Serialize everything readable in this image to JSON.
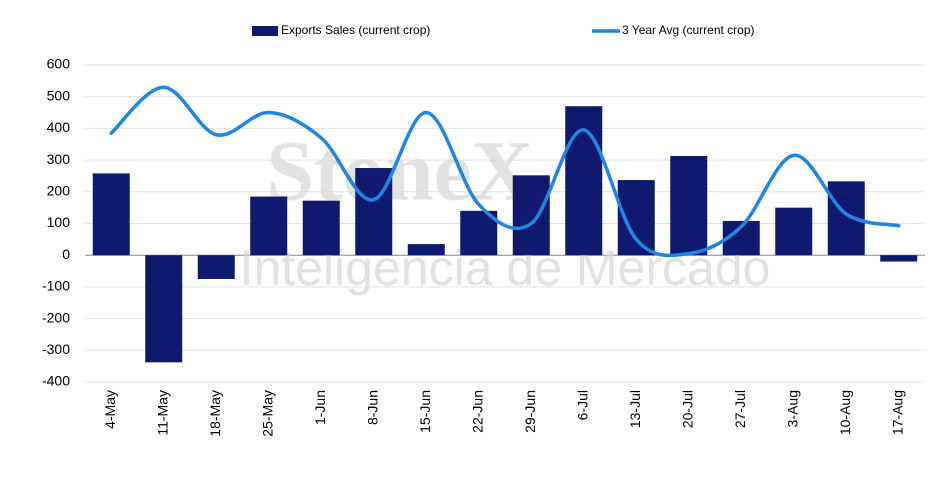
{
  "chart_data": {
    "type": "combo",
    "categories": [
      "4-May",
      "11-May",
      "18-May",
      "25-May",
      "1-Jun",
      "8-Jun",
      "15-Jun",
      "22-Jun",
      "29-Jun",
      "6-Jul",
      "13-Jul",
      "20-Jul",
      "27-Jul",
      "3-Aug",
      "10-Aug",
      "17-Aug"
    ],
    "series": [
      {
        "name": "Exports Sales (current crop)",
        "type": "bar",
        "color": "#0f1a6e",
        "values": [
          258,
          -338,
          -75,
          185,
          172,
          275,
          35,
          140,
          252,
          470,
          237,
          313,
          108,
          150,
          233,
          -20
        ]
      },
      {
        "name": "3 Year Avg (current crop)",
        "type": "line",
        "color": "#1f86e6",
        "values": [
          385,
          530,
          380,
          450,
          370,
          175,
          450,
          160,
          100,
          395,
          50,
          5,
          90,
          315,
          130,
          93
        ]
      }
    ],
    "ylim": [
      -400,
      600
    ],
    "yticks": [
      -400,
      -300,
      -200,
      -100,
      0,
      100,
      200,
      300,
      400,
      500,
      600
    ],
    "grid": true,
    "legend": "top",
    "watermark": [
      "StoneX",
      "Inteligencia de Mercado"
    ]
  }
}
